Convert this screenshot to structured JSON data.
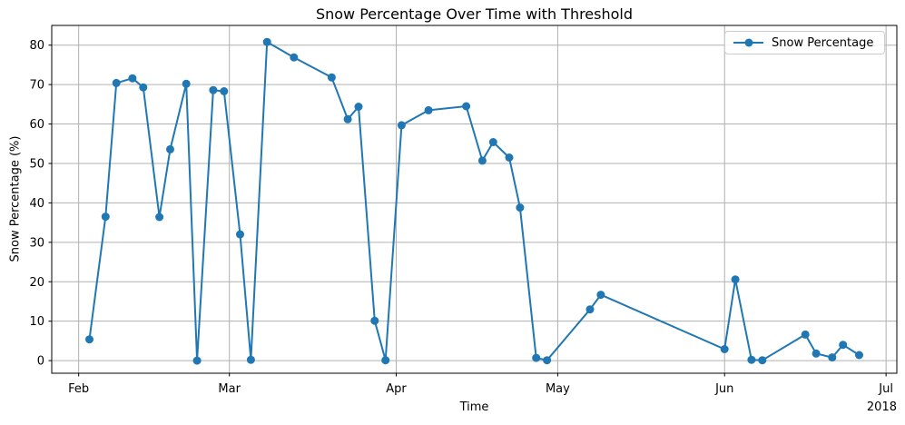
{
  "figure": {
    "background": "#ffffff"
  },
  "chart_data": {
    "type": "line",
    "title": "Snow Percentage Over Time with Threshold",
    "xlabel": "Time",
    "ylabel": "Snow Percentage (%)",
    "year_label": "2018",
    "grid": true,
    "grid_color": "#b0b0b0",
    "axis_color": "#000000",
    "tick_label_color": "#000000",
    "ylim": [
      -3.2,
      85.0
    ],
    "xlim": [
      "2018-01-27",
      "2018-07-03"
    ],
    "y_ticks": [
      0,
      10,
      20,
      30,
      40,
      50,
      60,
      70,
      80
    ],
    "x_ticks": [
      {
        "date": "2018-02-01",
        "label": "Feb"
      },
      {
        "date": "2018-03-01",
        "label": "Mar"
      },
      {
        "date": "2018-04-01",
        "label": "Apr"
      },
      {
        "date": "2018-05-01",
        "label": "May"
      },
      {
        "date": "2018-06-01",
        "label": "Jun"
      },
      {
        "date": "2018-07-01",
        "label": "Jul"
      }
    ],
    "legend": {
      "position": "upper right",
      "label": "Snow Percentage"
    },
    "series": [
      {
        "name": "Snow Percentage",
        "color": "#1f77b4",
        "marker": "o",
        "x": [
          "2018-02-03",
          "2018-02-06",
          "2018-02-08",
          "2018-02-11",
          "2018-02-13",
          "2018-02-16",
          "2018-02-18",
          "2018-02-21",
          "2018-02-23",
          "2018-02-26",
          "2018-02-28",
          "2018-03-03",
          "2018-03-05",
          "2018-03-08",
          "2018-03-13",
          "2018-03-20",
          "2018-03-23",
          "2018-03-25",
          "2018-03-28",
          "2018-03-30",
          "2018-04-02",
          "2018-04-07",
          "2018-04-14",
          "2018-04-17",
          "2018-04-19",
          "2018-04-22",
          "2018-04-24",
          "2018-04-27",
          "2018-04-29",
          "2018-05-07",
          "2018-05-09",
          "2018-06-01",
          "2018-06-03",
          "2018-06-06",
          "2018-06-08",
          "2018-06-16",
          "2018-06-18",
          "2018-06-21",
          "2018-06-23",
          "2018-06-26"
        ],
        "y": [
          5.4,
          36.5,
          70.4,
          71.6,
          69.3,
          36.4,
          53.6,
          70.2,
          0.0,
          68.6,
          68.3,
          32.0,
          0.2,
          80.8,
          76.9,
          71.8,
          61.2,
          64.4,
          10.1,
          0.1,
          59.7,
          63.5,
          64.5,
          50.7,
          55.4,
          51.5,
          38.8,
          0.7,
          0.1,
          13.0,
          16.7,
          2.9,
          20.6,
          0.2,
          0.1,
          6.6,
          1.8,
          0.8,
          4.0,
          1.4
        ]
      }
    ]
  }
}
